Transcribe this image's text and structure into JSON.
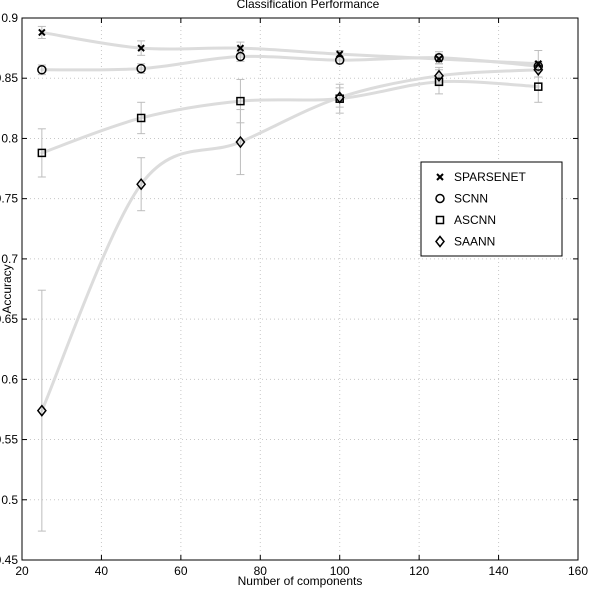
{
  "chart_data": {
    "type": "line",
    "title": "Classification Performance",
    "xlabel": "Number of components",
    "ylabel": "Accuracy",
    "xlim": [
      20,
      160
    ],
    "ylim": [
      0.45,
      0.9
    ],
    "xticks": [
      20,
      40,
      60,
      80,
      100,
      120,
      140,
      160
    ],
    "yticks": [
      0.45,
      0.5,
      0.55,
      0.6,
      0.65,
      0.7,
      0.75,
      0.8,
      0.85,
      0.9
    ],
    "grid": true,
    "legend_position": "right-middle",
    "x": [
      25,
      50,
      75,
      100,
      125,
      150
    ],
    "series": [
      {
        "name": "SPARSENET",
        "marker": "x",
        "values": [
          0.888,
          0.875,
          0.875,
          0.87,
          0.866,
          0.862
        ],
        "errors": [
          0.005,
          0.006,
          0.005,
          0.003,
          0.004,
          0.011
        ]
      },
      {
        "name": "SCNN",
        "marker": "circle",
        "values": [
          0.857,
          0.858,
          0.868,
          0.865,
          0.867,
          0.86
        ],
        "errors": [
          0.004,
          0.004,
          0.004,
          0.003,
          0.005,
          0.004
        ]
      },
      {
        "name": "ASCNN",
        "marker": "square",
        "values": [
          0.788,
          0.817,
          0.831,
          0.833,
          0.847,
          0.843
        ],
        "errors": [
          0.02,
          0.013,
          0.018,
          0.012,
          0.01,
          0.013
        ]
      },
      {
        "name": "SAANN",
        "marker": "diamond",
        "values": [
          0.574,
          0.762,
          0.797,
          0.834,
          0.852,
          0.857
        ],
        "errors": [
          0.1,
          0.022,
          0.027,
          0.008,
          0.007,
          0.006
        ]
      }
    ],
    "colors": {
      "trend": "#dcdcdc",
      "errorbar": "#bdbdbd",
      "grid": "#c8c8c8",
      "marker": "#000000"
    }
  }
}
